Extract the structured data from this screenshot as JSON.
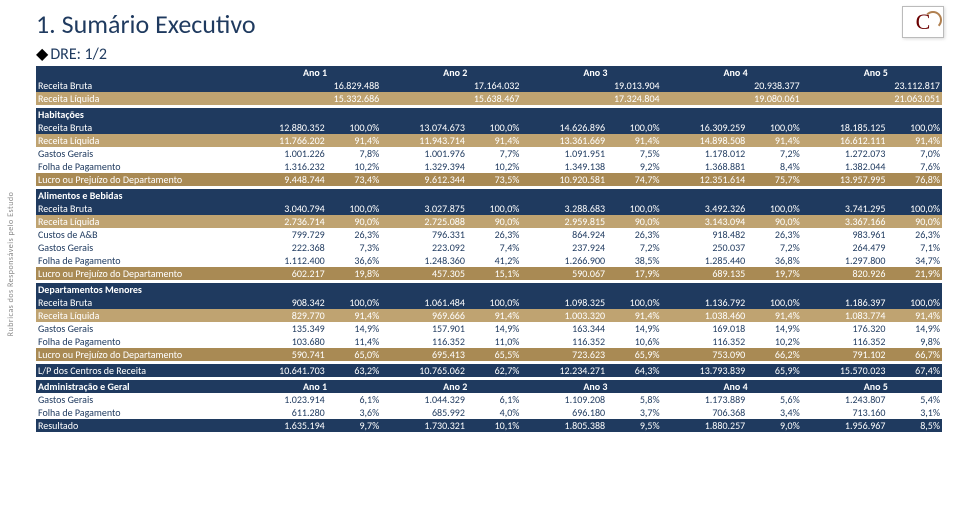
{
  "sidebar": "Rubricas dos Responsáveis pelo Estudo",
  "title": "1. Sumário Executivo",
  "subtitle": "DRE: 1/2",
  "years": [
    "Ano 1",
    "Ano 2",
    "Ano 3",
    "Ano 4",
    "Ano 5"
  ],
  "top": {
    "rb": {
      "label": "Receita Bruta",
      "v": [
        "16.829.488",
        "17.164.032",
        "19.013.904",
        "20.938.377",
        "23.112.817"
      ]
    },
    "rl": {
      "label": "Receita Líquida",
      "v": [
        "15.332.686",
        "15.638.467",
        "17.324.804",
        "19.080.061",
        "21.063.051"
      ]
    }
  },
  "hab": {
    "title": "Habitações",
    "rows": [
      {
        "cls": "rb",
        "label": "Receita Bruta",
        "v": [
          "12.880.352",
          "100,0%",
          "13.074.673",
          "100,0%",
          "14.626.896",
          "100,0%",
          "16.309.259",
          "100,0%",
          "18.185.125",
          "100,0%"
        ]
      },
      {
        "cls": "rl",
        "label": "Receita Líquida",
        "v": [
          "11.766.202",
          "91,4%",
          "11.943.714",
          "91,4%",
          "13.361.669",
          "91,4%",
          "14.898.508",
          "91,4%",
          "16.612.111",
          "91,4%"
        ]
      },
      {
        "cls": "plain",
        "label": "Gastos Gerais",
        "v": [
          "1.001.226",
          "7,8%",
          "1.001.976",
          "7,7%",
          "1.091.951",
          "7,5%",
          "1.178.012",
          "7,2%",
          "1.272.073",
          "7,0%"
        ]
      },
      {
        "cls": "plain",
        "label": "Folha de Pagamento",
        "v": [
          "1.316.232",
          "10,2%",
          "1.329.394",
          "10,2%",
          "1.349.138",
          "9,2%",
          "1.368.881",
          "8,4%",
          "1.382.044",
          "7,6%"
        ]
      },
      {
        "cls": "lp",
        "label": "Lucro ou Prejuízo do Departamento",
        "v": [
          "9.448.744",
          "73,4%",
          "9.612.344",
          "73,5%",
          "10.920.581",
          "74,7%",
          "12.351.614",
          "75,7%",
          "13.957.995",
          "76,8%"
        ]
      }
    ]
  },
  "ali": {
    "title": "Alimentos e Bebidas",
    "rows": [
      {
        "cls": "rb",
        "label": "Receita Bruta",
        "v": [
          "3.040.794",
          "100,0%",
          "3.027.875",
          "100,0%",
          "3.288.683",
          "100,0%",
          "3.492.326",
          "100,0%",
          "3.741.295",
          "100,0%"
        ]
      },
      {
        "cls": "rl",
        "label": "Receita Líquida",
        "v": [
          "2.736.714",
          "90,0%",
          "2.725.088",
          "90,0%",
          "2.959.815",
          "90,0%",
          "3.143.094",
          "90,0%",
          "3.367.166",
          "90,0%"
        ]
      },
      {
        "cls": "plain",
        "label": "Custos de A&B",
        "v": [
          "799.729",
          "26,3%",
          "796.331",
          "26,3%",
          "864.924",
          "26,3%",
          "918.482",
          "26,3%",
          "983.961",
          "26,3%"
        ]
      },
      {
        "cls": "plain",
        "label": "Gastos Gerais",
        "v": [
          "222.368",
          "7,3%",
          "223.092",
          "7,4%",
          "237.924",
          "7,2%",
          "250.037",
          "7,2%",
          "264.479",
          "7,1%"
        ]
      },
      {
        "cls": "plain",
        "label": "Folha de Pagamento",
        "v": [
          "1.112.400",
          "36,6%",
          "1.248.360",
          "41,2%",
          "1.266.900",
          "38,5%",
          "1.285.440",
          "36,8%",
          "1.297.800",
          "34,7%"
        ]
      },
      {
        "cls": "lp",
        "label": "Lucro ou Prejuízo do Departamento",
        "v": [
          "602.217",
          "19,8%",
          "457.305",
          "15,1%",
          "590.067",
          "17,9%",
          "689.135",
          "19,7%",
          "820.926",
          "21,9%"
        ]
      }
    ]
  },
  "men": {
    "title": "Departamentos Menores",
    "rows": [
      {
        "cls": "rb",
        "label": "Receita Bruta",
        "v": [
          "908.342",
          "100,0%",
          "1.061.484",
          "100,0%",
          "1.098.325",
          "100,0%",
          "1.136.792",
          "100,0%",
          "1.186.397",
          "100,0%"
        ]
      },
      {
        "cls": "rl",
        "label": "Receita Líquida",
        "v": [
          "829.770",
          "91,4%",
          "969.666",
          "91,4%",
          "1.003.320",
          "91,4%",
          "1.038.460",
          "91,4%",
          "1.083.774",
          "91,4%"
        ]
      },
      {
        "cls": "plain",
        "label": "Gastos Gerais",
        "v": [
          "135.349",
          "14,9%",
          "157.901",
          "14,9%",
          "163.344",
          "14,9%",
          "169.018",
          "14,9%",
          "176.320",
          "14,9%"
        ]
      },
      {
        "cls": "plain",
        "label": "Folha de Pagamento",
        "v": [
          "103.680",
          "11,4%",
          "116.352",
          "11,0%",
          "116.352",
          "10,6%",
          "116.352",
          "10,2%",
          "116.352",
          "9,8%"
        ]
      },
      {
        "cls": "lp",
        "label": "Lucro ou Prejuízo do Departamento",
        "v": [
          "590.741",
          "65,0%",
          "695.413",
          "65,5%",
          "723.623",
          "65,9%",
          "753.090",
          "66,2%",
          "791.102",
          "66,7%"
        ]
      }
    ]
  },
  "lpc": {
    "label": "L/P dos Centros de Receita",
    "v": [
      "10.641.703",
      "63,2%",
      "10.765.062",
      "62,7%",
      "12.234.271",
      "64,3%",
      "13.793.839",
      "65,9%",
      "15.570.023",
      "67,4%"
    ]
  },
  "adm": {
    "title": "Administração e Geral",
    "rows": [
      {
        "cls": "plain",
        "label": "Gastos Gerais",
        "v": [
          "1.023.914",
          "6,1%",
          "1.044.329",
          "6,1%",
          "1.109.208",
          "5,8%",
          "1.173.889",
          "5,6%",
          "1.243.807",
          "5,4%"
        ]
      },
      {
        "cls": "plain",
        "label": "Folha de Pagamento",
        "v": [
          "611.280",
          "3,6%",
          "685.992",
          "4,0%",
          "696.180",
          "3,7%",
          "706.368",
          "3,4%",
          "713.160",
          "3,1%"
        ]
      },
      {
        "cls": "res",
        "label": "Resultado",
        "v": [
          "1.635.194",
          "9,7%",
          "1.730.321",
          "10,1%",
          "1.805.388",
          "9,5%",
          "1.880.257",
          "9,0%",
          "1.956.967",
          "8,5%"
        ]
      }
    ]
  }
}
